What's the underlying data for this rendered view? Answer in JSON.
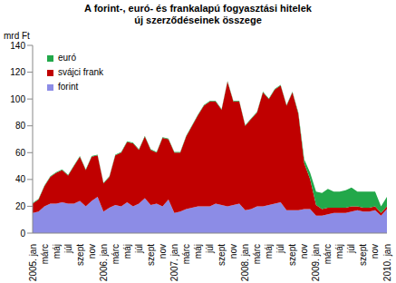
{
  "chart_data": {
    "type": "area",
    "stacked": true,
    "grid": false,
    "legend": "top-left",
    "title": [
      "A forint-, euró- és frankalapú fogyasztási hitelek",
      "új szerződéseinek összege"
    ],
    "y_label": "mrd Ft",
    "categories": [
      "2005. jan",
      null,
      "márc",
      null,
      "máj",
      null,
      "júl",
      null,
      "szept",
      null,
      "nov",
      null,
      "2006. jan",
      null,
      "márc",
      null,
      "máj",
      null,
      "júl",
      null,
      "szept",
      null,
      "nov",
      null,
      "2007. jan",
      null,
      "márc",
      null,
      "máj",
      null,
      "júl",
      null,
      "szept",
      null,
      "nov",
      null,
      "2008. jan",
      null,
      "márc",
      null,
      "máj",
      null,
      "júl",
      null,
      "szept",
      null,
      "nov",
      null,
      "2009. jan",
      null,
      "márc",
      null,
      "máj",
      null,
      "júl",
      null,
      "szept",
      null,
      "nov",
      null,
      "2010. jan"
    ],
    "ylim": [
      0,
      140
    ],
    "yticks": [
      0,
      20,
      40,
      60,
      80,
      100,
      120,
      140
    ],
    "series": [
      {
        "name": "forint",
        "color": "#8c8ce6",
        "values": [
          15,
          16,
          20,
          22,
          22,
          23,
          22,
          22,
          24,
          20,
          24,
          27,
          16,
          19,
          21,
          20,
          23,
          20,
          22,
          26,
          21,
          22,
          20,
          25,
          15,
          16,
          18,
          19,
          20,
          20,
          20,
          22,
          21,
          20,
          21,
          22,
          17,
          18,
          20,
          20,
          21,
          22,
          23,
          17,
          17,
          17,
          18,
          18,
          13,
          13,
          14,
          15,
          15,
          15,
          16,
          17,
          16,
          16,
          17,
          13,
          18
        ]
      },
      {
        "name": "svájci frank",
        "color": "#c00000",
        "values": [
          7,
          9,
          15,
          20,
          23,
          24,
          21,
          28,
          33,
          27,
          33,
          31,
          21,
          23,
          37,
          40,
          45,
          47,
          40,
          46,
          41,
          38,
          51,
          45,
          45,
          44,
          54,
          61,
          68,
          75,
          78,
          76,
          71,
          93,
          77,
          76,
          63,
          67,
          70,
          85,
          79,
          85,
          87,
          78,
          88,
          72,
          34,
          22,
          8,
          5,
          5,
          4,
          4,
          4,
          4,
          3,
          3,
          3,
          3,
          2,
          2
        ]
      },
      {
        "name": "euró",
        "color": "#22a84a",
        "values": [
          0.5,
          0.5,
          0.5,
          0.5,
          0.5,
          0.5,
          0.5,
          0.5,
          0.5,
          0.5,
          0.5,
          0.5,
          0.5,
          0.5,
          0.5,
          0.5,
          0.5,
          0.5,
          0.5,
          0.5,
          0.5,
          0.5,
          0.5,
          0.5,
          0.5,
          0.5,
          0.5,
          0.5,
          0.5,
          0.5,
          0.5,
          0.5,
          0.5,
          0.5,
          0.5,
          0.5,
          0.5,
          0.5,
          0.5,
          0.5,
          0.5,
          0.5,
          0.5,
          0.5,
          0.5,
          1,
          3,
          5,
          10,
          12,
          14,
          12,
          12,
          13,
          14,
          11,
          12,
          12,
          11,
          5,
          7
        ]
      }
    ]
  }
}
